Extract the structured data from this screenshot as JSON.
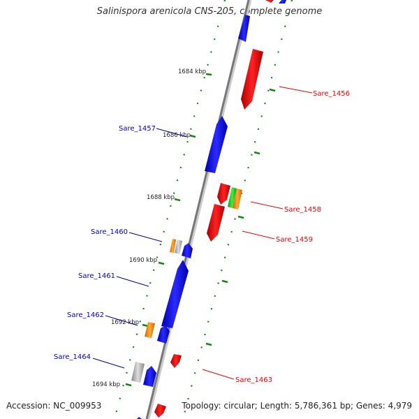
{
  "header": {
    "title": "Salinispora arenicola CNS-205, complete genome"
  },
  "footer": {
    "accession": "Accession: NC_009953",
    "summary": "Topology: circular; Length: 5,786,361 bp; Genes: 4,979"
  },
  "colors": {
    "backbone": "#888888",
    "forward_gene": "#0000ee",
    "reverse_gene": "#ee0000",
    "orange_feature": "#ff8c00",
    "green_feature": "#22cc22",
    "grey_feature": "#aaaaaa",
    "tick": "#118811"
  },
  "map": {
    "ticks": [
      {
        "label": "1684 kbp"
      },
      {
        "label": "1686 kbp"
      },
      {
        "label": "1688 kbp"
      },
      {
        "label": "1690 kbp"
      },
      {
        "label": "1692 kbp"
      },
      {
        "label": "1694 kbp"
      }
    ],
    "gene_labels": [
      {
        "name": "Sare_1456",
        "strand": "reverse"
      },
      {
        "name": "Sare_1457",
        "strand": "forward"
      },
      {
        "name": "Sare_1458",
        "strand": "reverse"
      },
      {
        "name": "Sare_1459",
        "strand": "reverse"
      },
      {
        "name": "Sare_1460",
        "strand": "forward"
      },
      {
        "name": "Sare_1461",
        "strand": "forward"
      },
      {
        "name": "Sare_1462",
        "strand": "forward"
      },
      {
        "name": "Sare_1463",
        "strand": "reverse"
      },
      {
        "name": "Sare_1464",
        "strand": "forward"
      }
    ]
  }
}
